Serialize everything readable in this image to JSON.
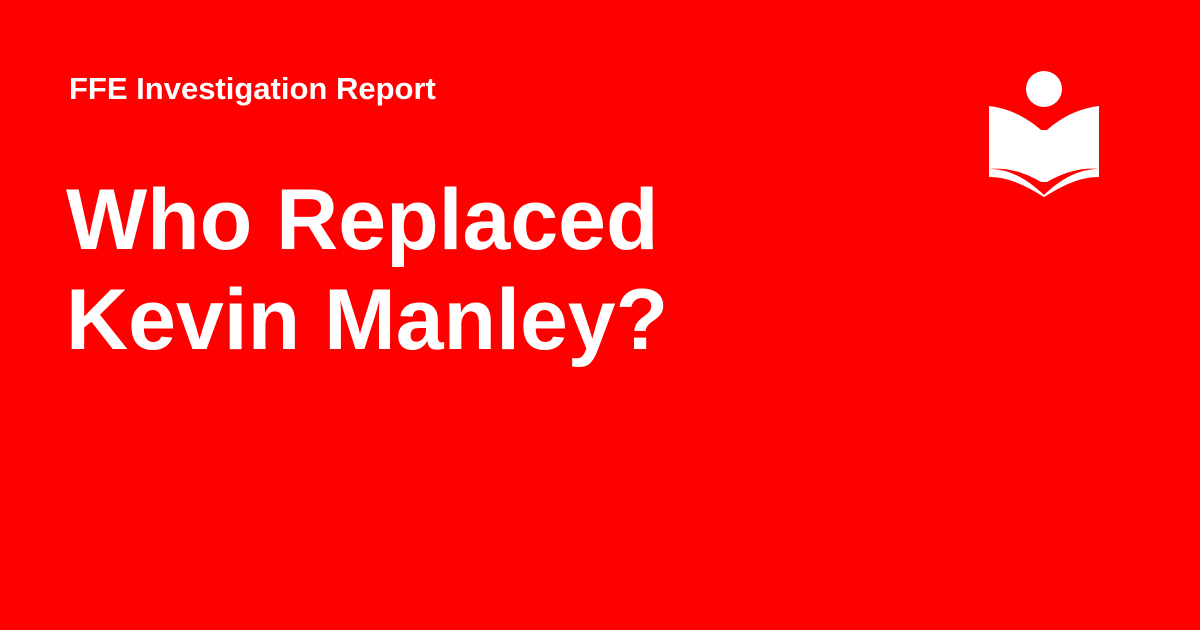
{
  "card": {
    "background_color": "#ff0000",
    "text_color": "#ffffff",
    "eyebrow": "FFE Investigation Report",
    "headline_lines": [
      "Who Replaced",
      "Kevin Manley?"
    ],
    "logo_icon": "reader-book-icon"
  }
}
